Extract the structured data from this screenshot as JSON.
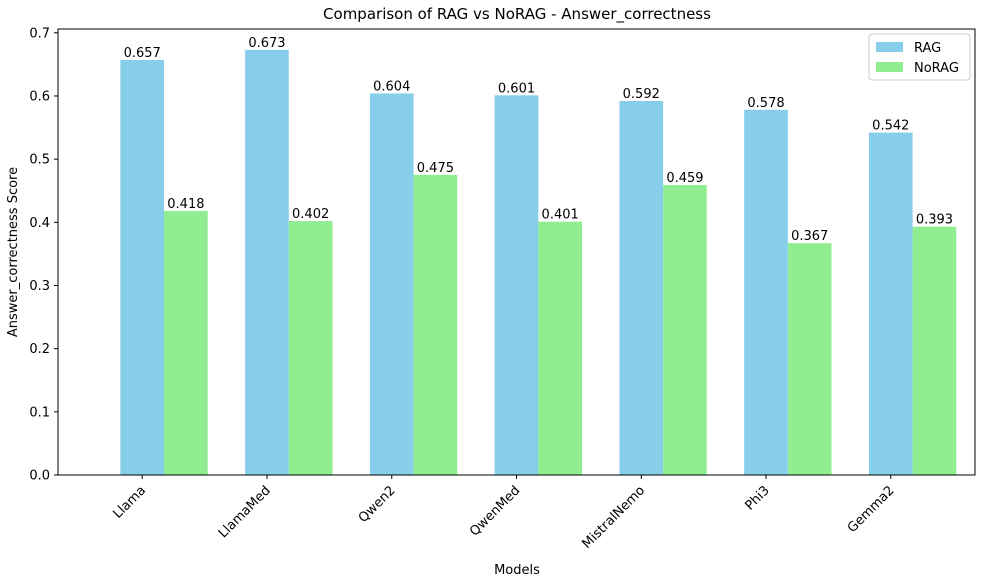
{
  "chart_data": {
    "type": "bar",
    "title": "Comparison of RAG vs NoRAG - Answer_correctness",
    "xlabel": "Models",
    "ylabel": "Answer_correctness Score",
    "categories": [
      "Llama",
      "LlamaMed",
      "Qwen2",
      "QwenMed",
      "MistralNemo",
      "Phi3",
      "Gemma2"
    ],
    "series": [
      {
        "name": "RAG",
        "color": "#87ceeb",
        "values": [
          0.657,
          0.673,
          0.604,
          0.601,
          0.592,
          0.578,
          0.542
        ],
        "labels": [
          "0.657",
          "0.673",
          "0.604",
          "0.601",
          "0.592",
          "0.578",
          "0.542"
        ]
      },
      {
        "name": "NoRAG",
        "color": "#90ee90",
        "values": [
          0.418,
          0.402,
          0.475,
          0.401,
          0.459,
          0.367,
          0.393
        ],
        "labels": [
          "0.418",
          "0.402",
          "0.475",
          "0.401",
          "0.459",
          "0.367",
          "0.393"
        ]
      }
    ],
    "ylim": [
      0,
      0.706
    ],
    "yticks": [
      0.0,
      0.1,
      0.2,
      0.3,
      0.4,
      0.5,
      0.6,
      0.7
    ],
    "ytick_labels": [
      "0.0",
      "0.1",
      "0.2",
      "0.3",
      "0.4",
      "0.5",
      "0.6",
      "0.7"
    ],
    "grid": false,
    "legend": "top-right",
    "xtick_rotation": 45
  }
}
